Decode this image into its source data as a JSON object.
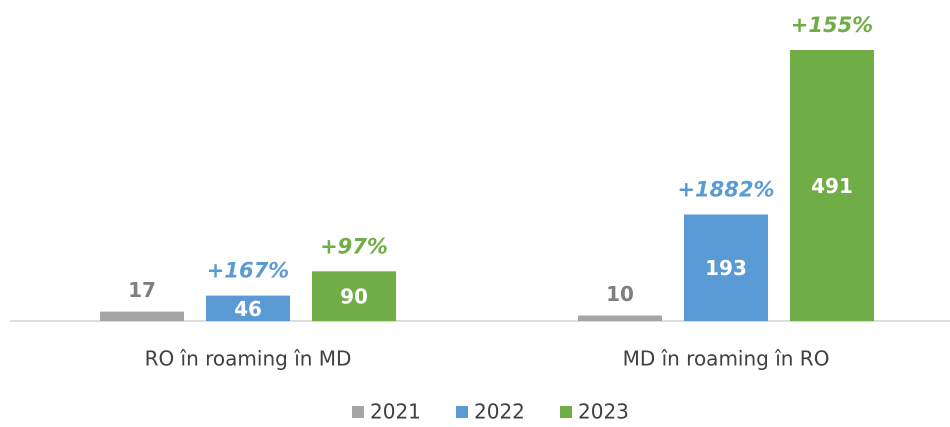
{
  "chart_data": {
    "type": "bar",
    "categories": [
      "RO în roaming în MD",
      "MD în roaming în RO"
    ],
    "series": [
      {
        "name": "2021",
        "color": "#a5a5a5",
        "values": [
          17,
          10
        ]
      },
      {
        "name": "2022",
        "color": "#5b9bd5",
        "values": [
          46,
          193
        ],
        "annotations": [
          "+167%",
          "+1882%"
        ]
      },
      {
        "name": "2023",
        "color": "#70ad47",
        "values": [
          90,
          491
        ],
        "annotations": [
          "+97%",
          "+155%"
        ]
      }
    ],
    "legend": "bottom"
  }
}
